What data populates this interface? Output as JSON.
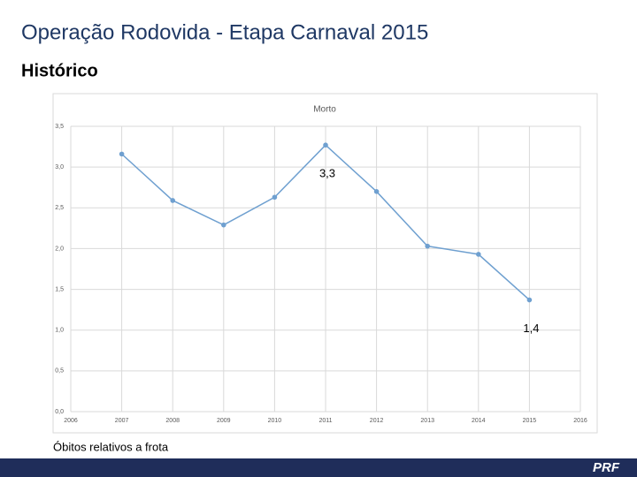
{
  "slide": {
    "title": "Operação Rodovida - Etapa Carnaval 2015",
    "subtitle": "Histórico",
    "caption": "Óbitos relativos a frota",
    "logo": "PRF"
  },
  "chart_data": {
    "type": "line",
    "title": "Morto",
    "x": [
      2007,
      2008,
      2009,
      2010,
      2011,
      2012,
      2013,
      2014,
      2015
    ],
    "series": [
      {
        "name": "Morto",
        "color": "#6fa0d0",
        "values": [
          3.16,
          2.59,
          2.29,
          2.63,
          3.27,
          2.7,
          2.03,
          1.93,
          1.37
        ],
        "value_labels": [
          null,
          null,
          null,
          null,
          "3,3",
          null,
          null,
          null,
          "1,4"
        ]
      }
    ],
    "xlim": [
      2006,
      2016
    ],
    "xticks": [
      2006,
      2007,
      2008,
      2009,
      2010,
      2011,
      2012,
      2013,
      2014,
      2015,
      2016
    ],
    "ylim": [
      0,
      3.5
    ],
    "yticks": [
      {
        "value": 0,
        "label": "0,0"
      },
      {
        "value": 0.5,
        "label": "0,5"
      },
      {
        "value": 1,
        "label": "1,0"
      },
      {
        "value": 1.5,
        "label": "1,5"
      },
      {
        "value": 2,
        "label": "2,0"
      },
      {
        "value": 2.5,
        "label": "2,5"
      },
      {
        "value": 3,
        "label": "3,0"
      },
      {
        "value": 3.5,
        "label": "3,5"
      }
    ],
    "grid": true
  }
}
